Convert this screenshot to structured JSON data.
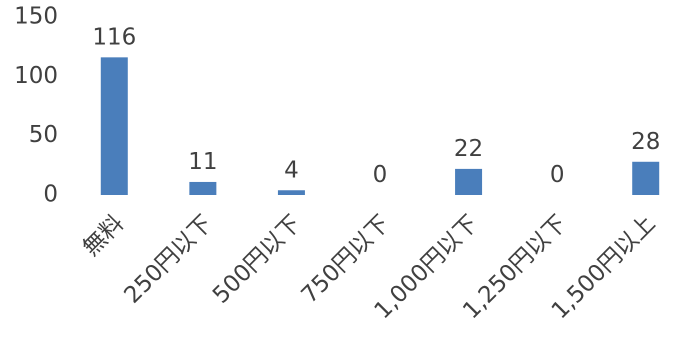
{
  "chart_data": {
    "type": "bar",
    "categories": [
      "無料",
      "250円以下",
      "500円以下",
      "750円以下",
      "1,000円以下",
      "1,250円以下",
      "1,500円以上"
    ],
    "values": [
      116,
      11,
      4,
      0,
      22,
      0,
      28
    ],
    "title": "",
    "xlabel": "",
    "ylabel": "",
    "ylim": [
      0,
      150
    ],
    "yticks": [
      0,
      50,
      100,
      150
    ],
    "grid": false,
    "legend": "none",
    "data_labels": true,
    "colors": {
      "bar": "#4a7ebb",
      "text": "#404040",
      "background": "#ffffff"
    }
  }
}
